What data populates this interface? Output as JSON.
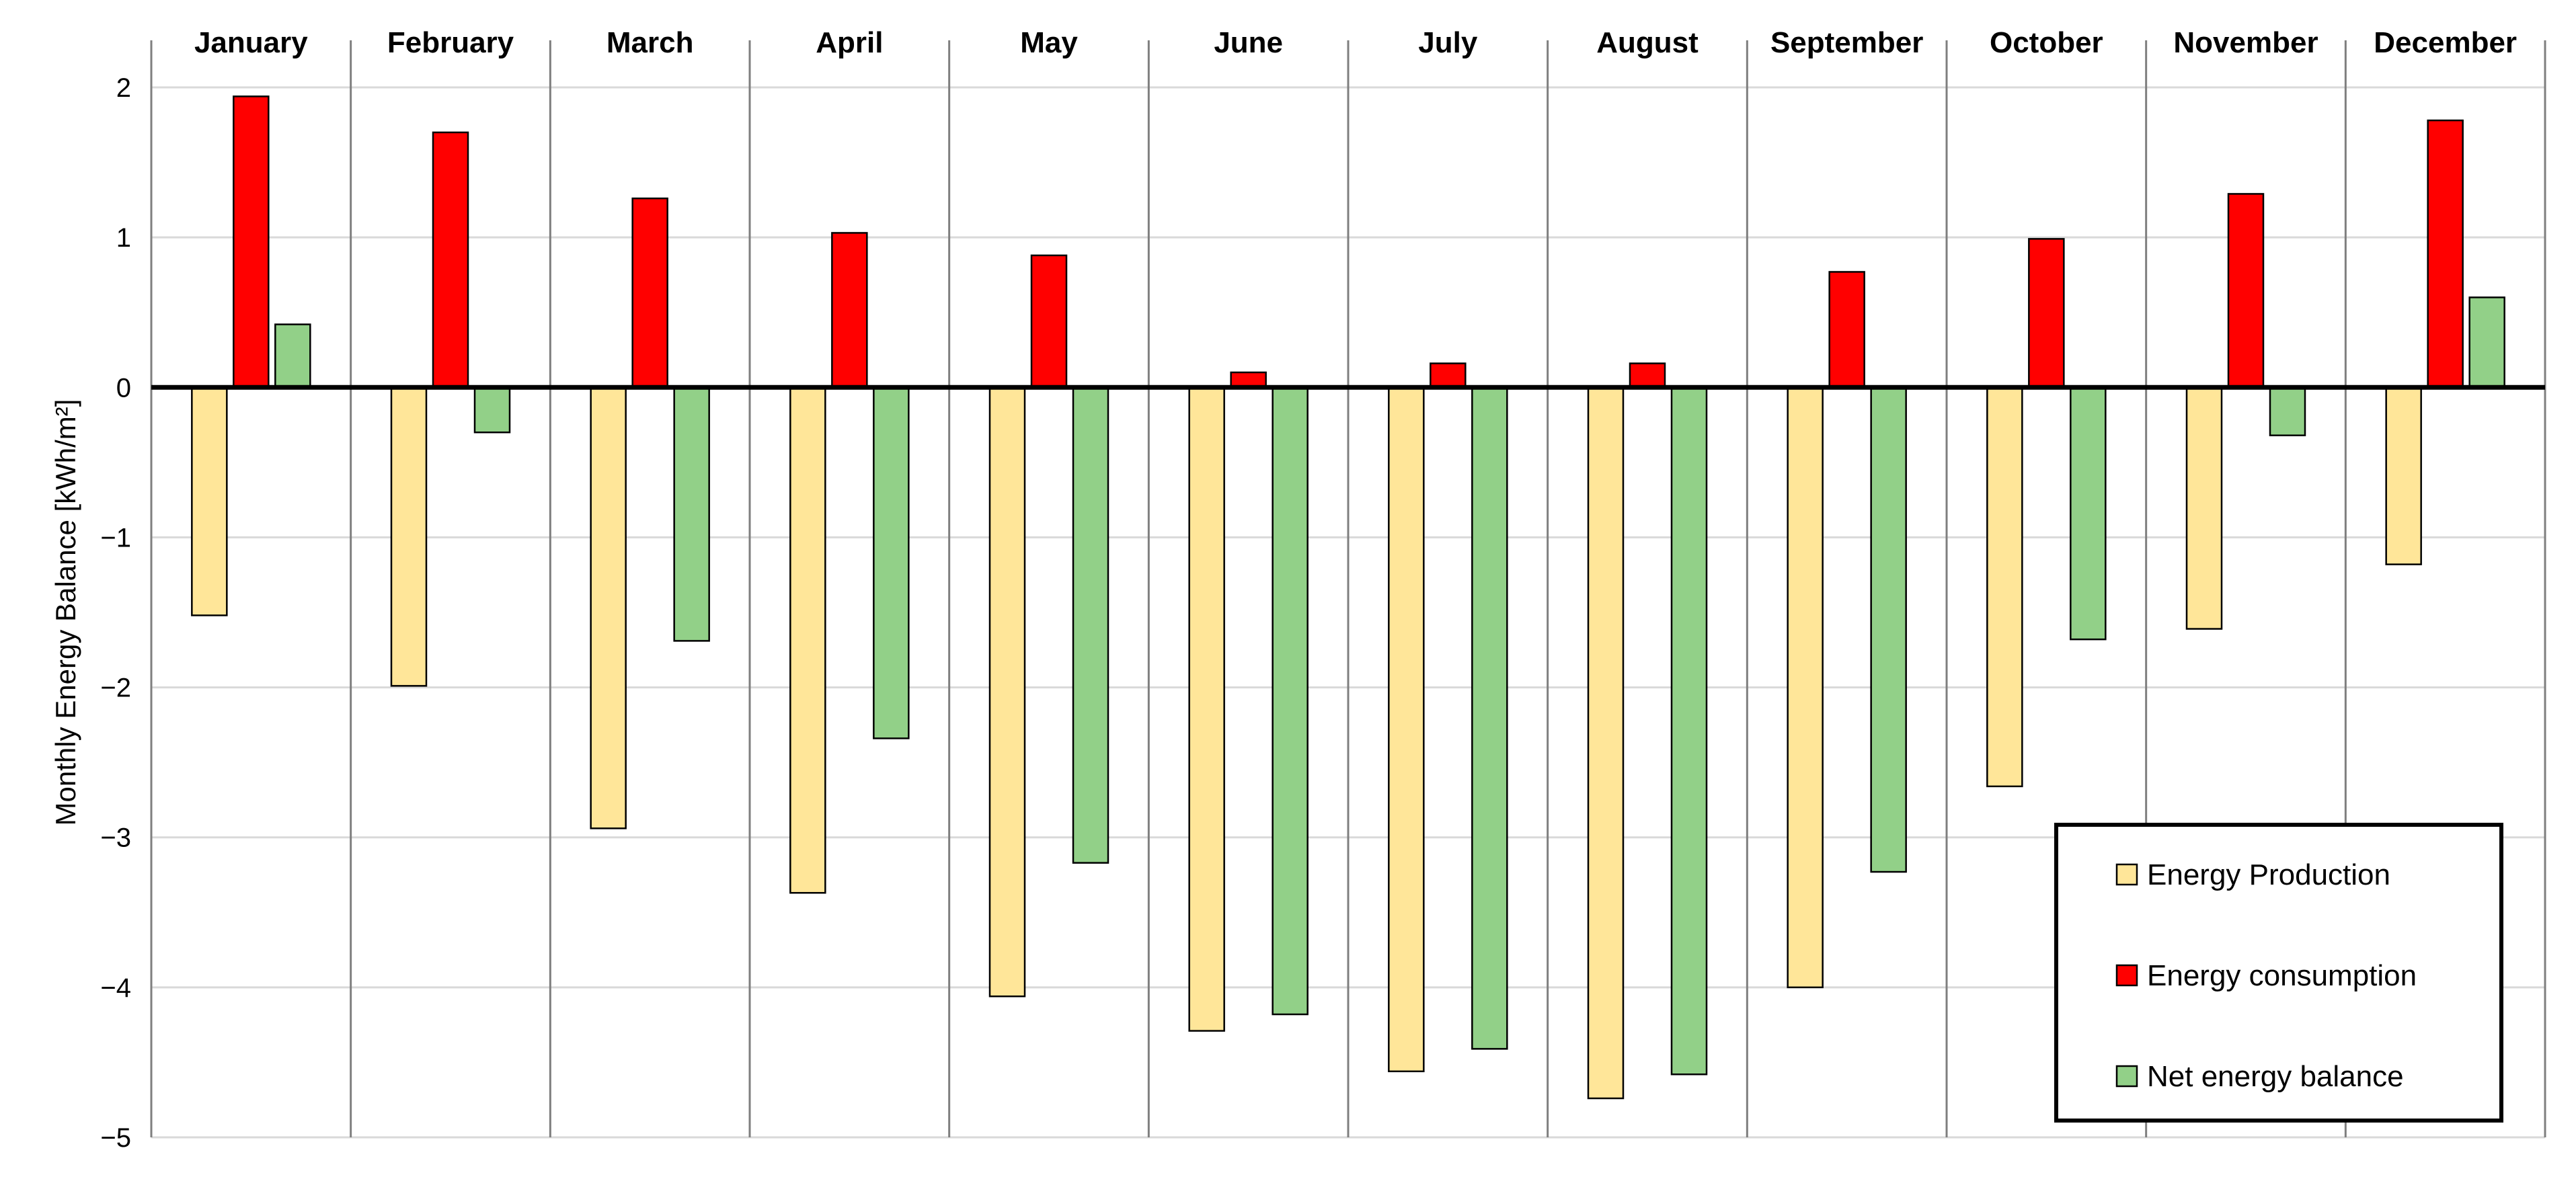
{
  "chart_data": {
    "type": "bar",
    "categories": [
      "January",
      "February",
      "March",
      "April",
      "May",
      "June",
      "July",
      "August",
      "September",
      "October",
      "November",
      "December"
    ],
    "series": [
      {
        "name": "Energy Production",
        "color": "#FFE699",
        "values": [
          -1.52,
          -1.99,
          -2.94,
          -3.37,
          -4.06,
          -4.29,
          -4.56,
          -4.74,
          -4.0,
          -2.66,
          -1.61,
          -1.18
        ]
      },
      {
        "name": "Energy consumption",
        "color": "#FF0000",
        "values": [
          1.94,
          1.7,
          1.26,
          1.03,
          0.88,
          0.1,
          0.16,
          0.16,
          0.77,
          0.99,
          1.29,
          1.78
        ]
      },
      {
        "name": "Net energy balance",
        "color": "#92D088",
        "values": [
          0.42,
          -0.3,
          -1.69,
          -2.34,
          -3.17,
          -4.18,
          -4.41,
          -4.58,
          -3.23,
          -1.68,
          -0.32,
          0.6
        ]
      }
    ],
    "title": "",
    "xlabel": "",
    "ylabel": "Monthly Energy Balance [kWh/m²]",
    "ylim": [
      -5,
      2
    ],
    "yticks": [
      "2",
      "1",
      "0",
      "-1",
      "-2",
      "-3",
      "-4",
      "-5"
    ],
    "legend_position": "bottom-right",
    "grid": true,
    "month_labels_position": "top"
  }
}
